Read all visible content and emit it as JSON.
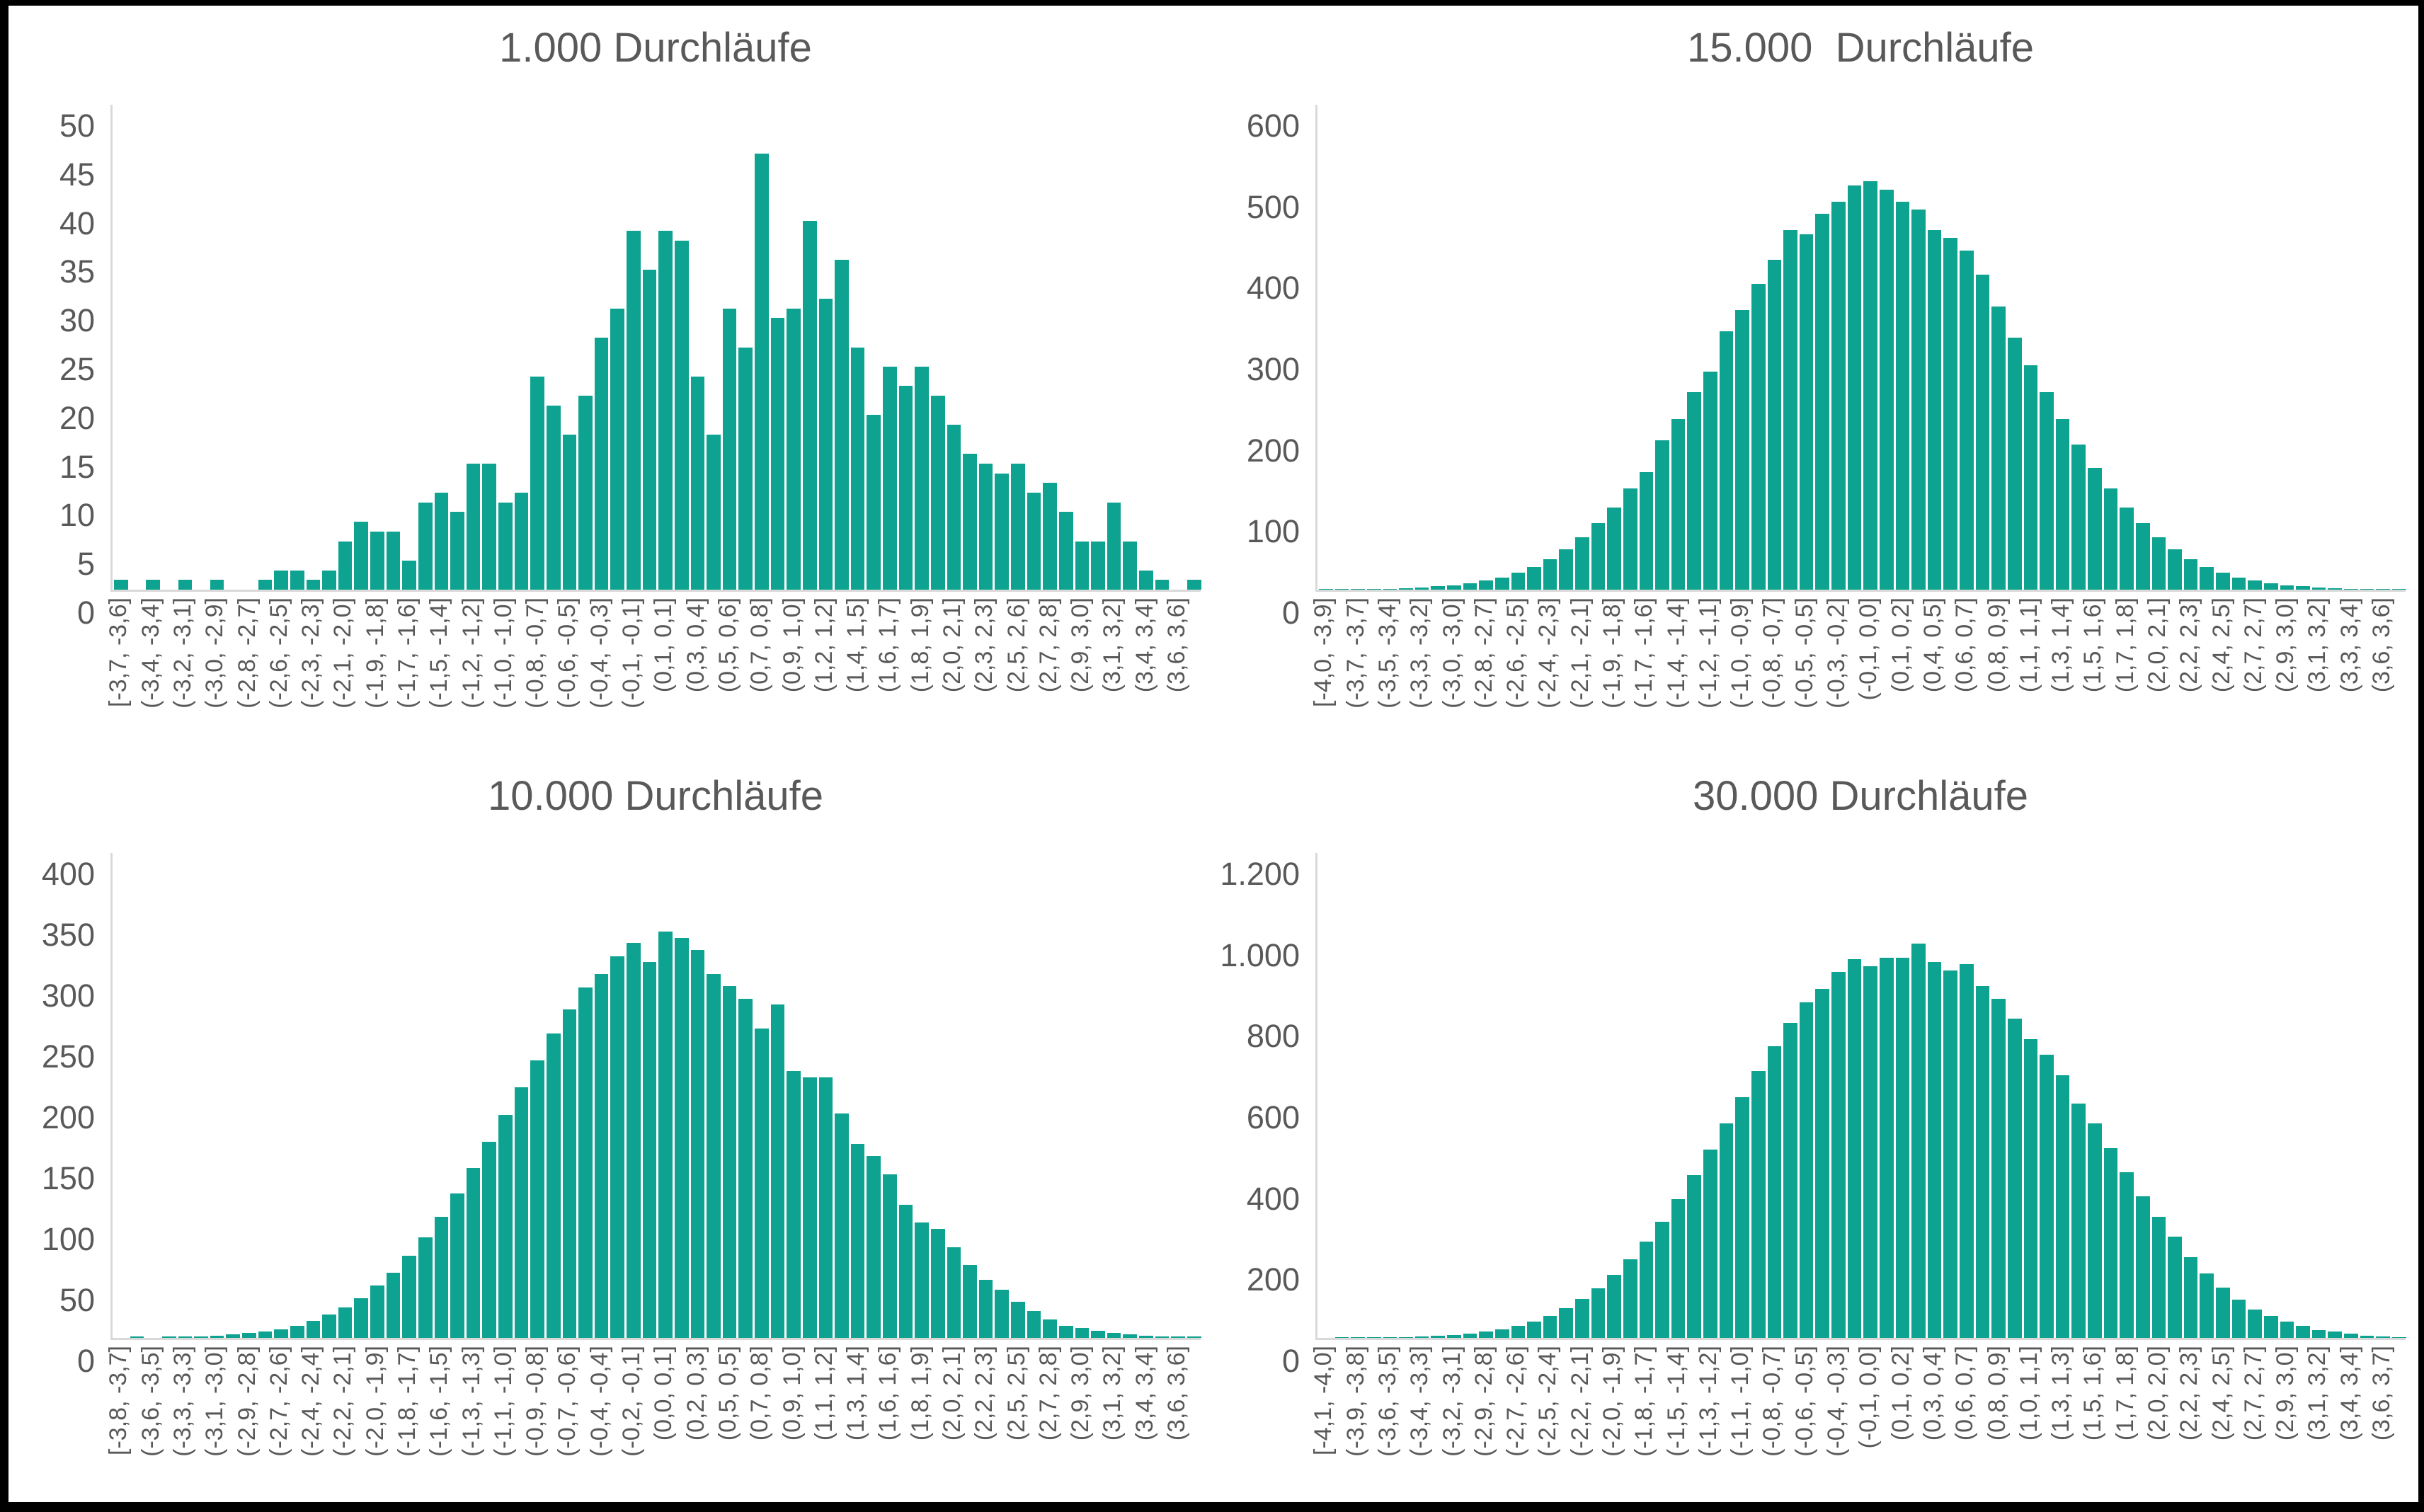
{
  "colors": {
    "bar": "#0EA390",
    "axis": "#D9D9D9",
    "text": "#595959",
    "frame": "#000000"
  },
  "chart_data": [
    {
      "type": "bar",
      "title": "1.000 Durchläufe",
      "xlabel": "",
      "ylabel": "",
      "ylim": [
        0,
        50
      ],
      "grid": false,
      "legend": "none",
      "y_ticks": [
        "50",
        "45",
        "40",
        "35",
        "30",
        "25",
        "20",
        "15",
        "10",
        "5",
        "0"
      ],
      "label_every_n_bars": 2,
      "categories": [
        "[-3,7, -3,6]",
        "(-3,4, -3,4]",
        "(-3,2, -3,1]",
        "(-3,0, -2,9]",
        "(-2,8, -2,7]",
        "(-2,6, -2,5]",
        "(-2,3, -2,3]",
        "(-2,1, -2,0]",
        "(-1,9, -1,8]",
        "(-1,7, -1,6]",
        "(-1,5, -1,4]",
        "(-1,2, -1,2]",
        "(-1,0, -1,0]",
        "(-0,8, -0,7]",
        "(-0,6, -0,5]",
        "(-0,4, -0,3]",
        "(-0,1, -0,1]",
        "(0,1, 0,1]",
        "(0,3, 0,4]",
        "(0,5, 0,6]",
        "(0,7, 0,8]",
        "(0,9, 1,0]",
        "(1,2, 1,2]",
        "(1,4, 1,5]",
        "(1,6, 1,7]",
        "(1,8, 1,9]",
        "(2,0, 2,1]",
        "(2,3, 2,3]",
        "(2,5, 2,6]",
        "(2,7, 2,8]",
        "(2,9, 3,0]",
        "(3,1, 3,2]",
        "(3,4, 3,4]",
        "(3,6, 3,6]"
      ],
      "values": [
        1,
        0,
        1,
        0,
        1,
        0,
        1,
        0,
        0,
        1,
        2,
        2,
        1,
        2,
        5,
        7,
        6,
        6,
        3,
        9,
        10,
        8,
        13,
        13,
        9,
        10,
        22,
        19,
        16,
        20,
        26,
        29,
        37,
        33,
        37,
        36,
        22,
        16,
        29,
        25,
        45,
        28,
        29,
        38,
        30,
        34,
        25,
        18,
        23,
        21,
        23,
        20,
        17,
        14,
        13,
        12,
        13,
        10,
        11,
        8,
        5,
        5,
        9,
        5,
        2,
        1,
        0,
        1
      ]
    },
    {
      "type": "bar",
      "title": "15.000  Durchläufe",
      "xlabel": "",
      "ylabel": "",
      "ylim": [
        0,
        600
      ],
      "grid": false,
      "legend": "none",
      "y_ticks": [
        "600",
        "500",
        "400",
        "300",
        "200",
        "100",
        "0"
      ],
      "label_every_n_bars": 2,
      "categories": [
        "[-4,0, -3,9]",
        "(-3,7, -3,7]",
        "(-3,5, -3,4]",
        "(-3,3, -3,2]",
        "(-3,0, -3,0]",
        "(-2,8, -2,7]",
        "(-2,6, -2,5]",
        "(-2,4, -2,3]",
        "(-2,1, -2,1]",
        "(-1,9, -1,8]",
        "(-1,7, -1,6]",
        "(-1,4, -1,4]",
        "(-1,2, -1,1]",
        "(-1,0, -0,9]",
        "(-0,8, -0,7]",
        "(-0,5, -0,5]",
        "(-0,3, -0,2]",
        "(-0,1, 0,0]",
        "(0,1, 0,2]",
        "(0,4, 0,5]",
        "(0,6, 0,7]",
        "(0,8, 0,9]",
        "(1,1, 1,1]",
        "(1,3, 1,4]",
        "(1,5, 1,6]",
        "(1,7, 1,8]",
        "(2,0, 2,1]",
        "(2,2, 2,3]",
        "(2,4, 2,5]",
        "(2,7, 2,7]",
        "(2,9, 3,0]",
        "(3,1, 3,2]",
        "(3,3, 3,4]",
        "(3,6, 3,6]"
      ],
      "values": [
        1,
        1,
        1,
        1,
        1,
        2,
        3,
        4,
        5,
        8,
        11,
        15,
        21,
        28,
        38,
        50,
        65,
        82,
        102,
        125,
        145,
        185,
        211,
        244,
        270,
        320,
        346,
        378,
        408,
        445,
        440,
        465,
        480,
        500,
        505,
        495,
        480,
        470,
        445,
        435,
        420,
        390,
        350,
        312,
        278,
        244,
        211,
        180,
        151,
        125,
        102,
        82,
        65,
        50,
        38,
        28,
        21,
        15,
        11,
        8,
        5,
        4,
        3,
        2,
        1,
        1,
        1,
        1
      ]
    },
    {
      "type": "bar",
      "title": "10.000 Durchläufe",
      "xlabel": "",
      "ylabel": "",
      "ylim": [
        0,
        400
      ],
      "grid": false,
      "legend": "none",
      "y_ticks": [
        "400",
        "350",
        "300",
        "250",
        "200",
        "150",
        "100",
        "50",
        "0"
      ],
      "label_every_n_bars": 2,
      "categories": [
        "[-3,8, -3,7]",
        "(-3,6, -3,5]",
        "(-3,3, -3,3]",
        "(-3,1, -3,0]",
        "(-2,9, -2,8]",
        "(-2,7, -2,6]",
        "(-2,4, -2,4]",
        "(-2,2, -2,1]",
        "(-2,0, -1,9]",
        "(-1,8, -1,7]",
        "(-1,6, -1,5]",
        "(-1,3, -1,3]",
        "(-1,1, -1,0]",
        "(-0,9, -0,8]",
        "(-0,7, -0,6]",
        "(-0,4, -0,4]",
        "(-0,2, -0,1]",
        "(0,0, 0,1]",
        "(0,2, 0,3]",
        "(0,5, 0,5]",
        "(0,7, 0,8]",
        "(0,9, 1,0]",
        "(1,1, 1,2]",
        "(1,3, 1,4]",
        "(1,6, 1,6]",
        "(1,8, 1,9]",
        "(2,0, 2,1]",
        "(2,2, 2,3]",
        "(2,5, 2,5]",
        "(2,7, 2,8]",
        "(2,9, 3,0]",
        "(3,1, 3,2]",
        "(3,4, 3,4]",
        "(3,6, 3,6]"
      ],
      "values": [
        0,
        1,
        0,
        1,
        1,
        1,
        2,
        3,
        4,
        5,
        7,
        10,
        14,
        19,
        25,
        33,
        43,
        54,
        68,
        83,
        100,
        119,
        140,
        162,
        184,
        207,
        229,
        251,
        271,
        289,
        300,
        315,
        326,
        310,
        335,
        330,
        320,
        300,
        290,
        280,
        255,
        275,
        220,
        215,
        215,
        185,
        160,
        150,
        135,
        110,
        95,
        90,
        75,
        60,
        48,
        40,
        30,
        22,
        15,
        10,
        8,
        6,
        4,
        3,
        2,
        1,
        1,
        1
      ]
    },
    {
      "type": "bar",
      "title": "30.000 Durchläufe",
      "xlabel": "",
      "ylabel": "",
      "ylim": [
        0,
        1200
      ],
      "grid": false,
      "legend": "none",
      "y_ticks": [
        "1.200",
        "1.000",
        "800",
        "600",
        "400",
        "200",
        "0"
      ],
      "label_every_n_bars": 2,
      "categories": [
        "[-4,1, -4,0]",
        "(-3,9, -3,8]",
        "(-3,6, -3,5]",
        "(-3,4, -3,3]",
        "(-3,2, -3,1]",
        "(-2,9, -2,8]",
        "(-2,7, -2,6]",
        "(-2,5, -2,4]",
        "(-2,2, -2,1]",
        "(-2,0, -1,9]",
        "(-1,8, -1,7]",
        "(-1,5, -1,4]",
        "(-1,3, -1,2]",
        "(-1,1, -1,0]",
        "(-0,8, -0,7]",
        "(-0,6, -0,5]",
        "(-0,4, -0,3]",
        "(-0,1, 0,0]",
        "(0,1, 0,2]",
        "(0,3, 0,4]",
        "(0,6, 0,7]",
        "(0,8, 0,9]",
        "(1,0, 1,1]",
        "(1,3, 1,3]",
        "(1,5, 1,6]",
        "(1,7, 1,8]",
        "(2,0, 2,0]",
        "(2,2, 2,3]",
        "(2,4, 2,5]",
        "(2,7, 2,7]",
        "(2,9, 3,0]",
        "(3,1, 3,2]",
        "(3,4, 3,4]",
        "(3,6, 3,7]"
      ],
      "values": [
        0,
        1,
        1,
        1,
        1,
        2,
        3,
        5,
        7,
        10,
        15,
        21,
        29,
        41,
        55,
        73,
        96,
        123,
        156,
        194,
        238,
        288,
        343,
        403,
        466,
        530,
        596,
        660,
        722,
        779,
        830,
        864,
        905,
        938,
        920,
        940,
        940,
        975,
        930,
        910,
        925,
        870,
        840,
        790,
        740,
        700,
        650,
        580,
        530,
        470,
        410,
        350,
        300,
        250,
        200,
        160,
        125,
        95,
        70,
        55,
        40,
        30,
        20,
        15,
        10,
        6,
        4,
        2
      ]
    }
  ]
}
